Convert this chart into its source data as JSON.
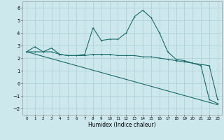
{
  "title": "",
  "xlabel": "Humidex (Indice chaleur)",
  "ylabel": "",
  "background_color": "#cce8ec",
  "grid_color": "#aacfd4",
  "line_color": "#1a6b6b",
  "xlim": [
    -0.5,
    23.5
  ],
  "ylim": [
    -2.5,
    6.5
  ],
  "xticks": [
    0,
    1,
    2,
    3,
    4,
    5,
    6,
    7,
    8,
    9,
    10,
    11,
    12,
    13,
    14,
    15,
    16,
    17,
    18,
    19,
    20,
    21,
    22,
    23
  ],
  "yticks": [
    -2,
    -1,
    0,
    1,
    2,
    3,
    4,
    5,
    6
  ],
  "series1_x": [
    0,
    1,
    2,
    3,
    4,
    5,
    6,
    7,
    8,
    9,
    10,
    11,
    12,
    13,
    14,
    15,
    16,
    17,
    18,
    19,
    20,
    21,
    22,
    23
  ],
  "series1_y": [
    2.5,
    2.9,
    2.5,
    2.8,
    2.3,
    2.2,
    2.2,
    2.3,
    4.4,
    3.4,
    3.5,
    3.5,
    4.0,
    5.3,
    5.8,
    5.2,
    4.0,
    2.5,
    1.9,
    1.8,
    1.6,
    1.4,
    -1.3,
    -1.6
  ],
  "series2_x": [
    0,
    1,
    2,
    3,
    4,
    5,
    6,
    7,
    8,
    9,
    10,
    11,
    12,
    13,
    14,
    15,
    16,
    17,
    18,
    19,
    20,
    21,
    22,
    23
  ],
  "series2_y": [
    2.5,
    2.5,
    2.5,
    2.5,
    2.3,
    2.2,
    2.2,
    2.2,
    2.3,
    2.3,
    2.3,
    2.2,
    2.2,
    2.2,
    2.1,
    2.1,
    2.0,
    1.9,
    1.8,
    1.7,
    1.6,
    1.5,
    1.4,
    -1.3
  ],
  "series3_x": [
    0,
    23
  ],
  "series3_y": [
    2.5,
    -1.7
  ]
}
